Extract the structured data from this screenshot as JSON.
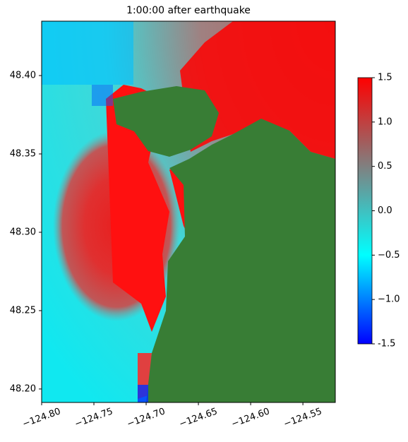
{
  "chart_data": {
    "type": "map",
    "title": "1:00:00 after earthquake",
    "xlim": [
      -124.8,
      -124.519
    ],
    "ylim": [
      48.1914,
      48.4347
    ],
    "xticks": [
      {
        "value": -124.8,
        "label": "−124.80"
      },
      {
        "value": -124.75,
        "label": "−124.75"
      },
      {
        "value": -124.7,
        "label": "−124.70"
      },
      {
        "value": -124.65,
        "label": "−124.65"
      },
      {
        "value": -124.6,
        "label": "−124.60"
      },
      {
        "value": -124.55,
        "label": "−124.55"
      }
    ],
    "yticks": [
      {
        "value": 48.2,
        "label": "48.20"
      },
      {
        "value": 48.25,
        "label": "48.25"
      },
      {
        "value": 48.3,
        "label": "48.30"
      },
      {
        "value": 48.35,
        "label": "48.35"
      },
      {
        "value": 48.4,
        "label": "48.40"
      }
    ],
    "colorbar": {
      "lim": [
        -1.5,
        1.5
      ],
      "colors": [
        "#0000ff",
        "#00ffff",
        "#808080",
        "#ff0000"
      ],
      "ticks": [
        -1.5,
        {
          "value": -1.0,
          "label": "−1.0"
        },
        {
          "value": -0.5,
          "label": "−0.5"
        },
        {
          "value": 0.0,
          "label": "0.0"
        },
        0.5,
        {
          "value": 1.0,
          "label": "1.0"
        },
        1.5
      ]
    }
  }
}
